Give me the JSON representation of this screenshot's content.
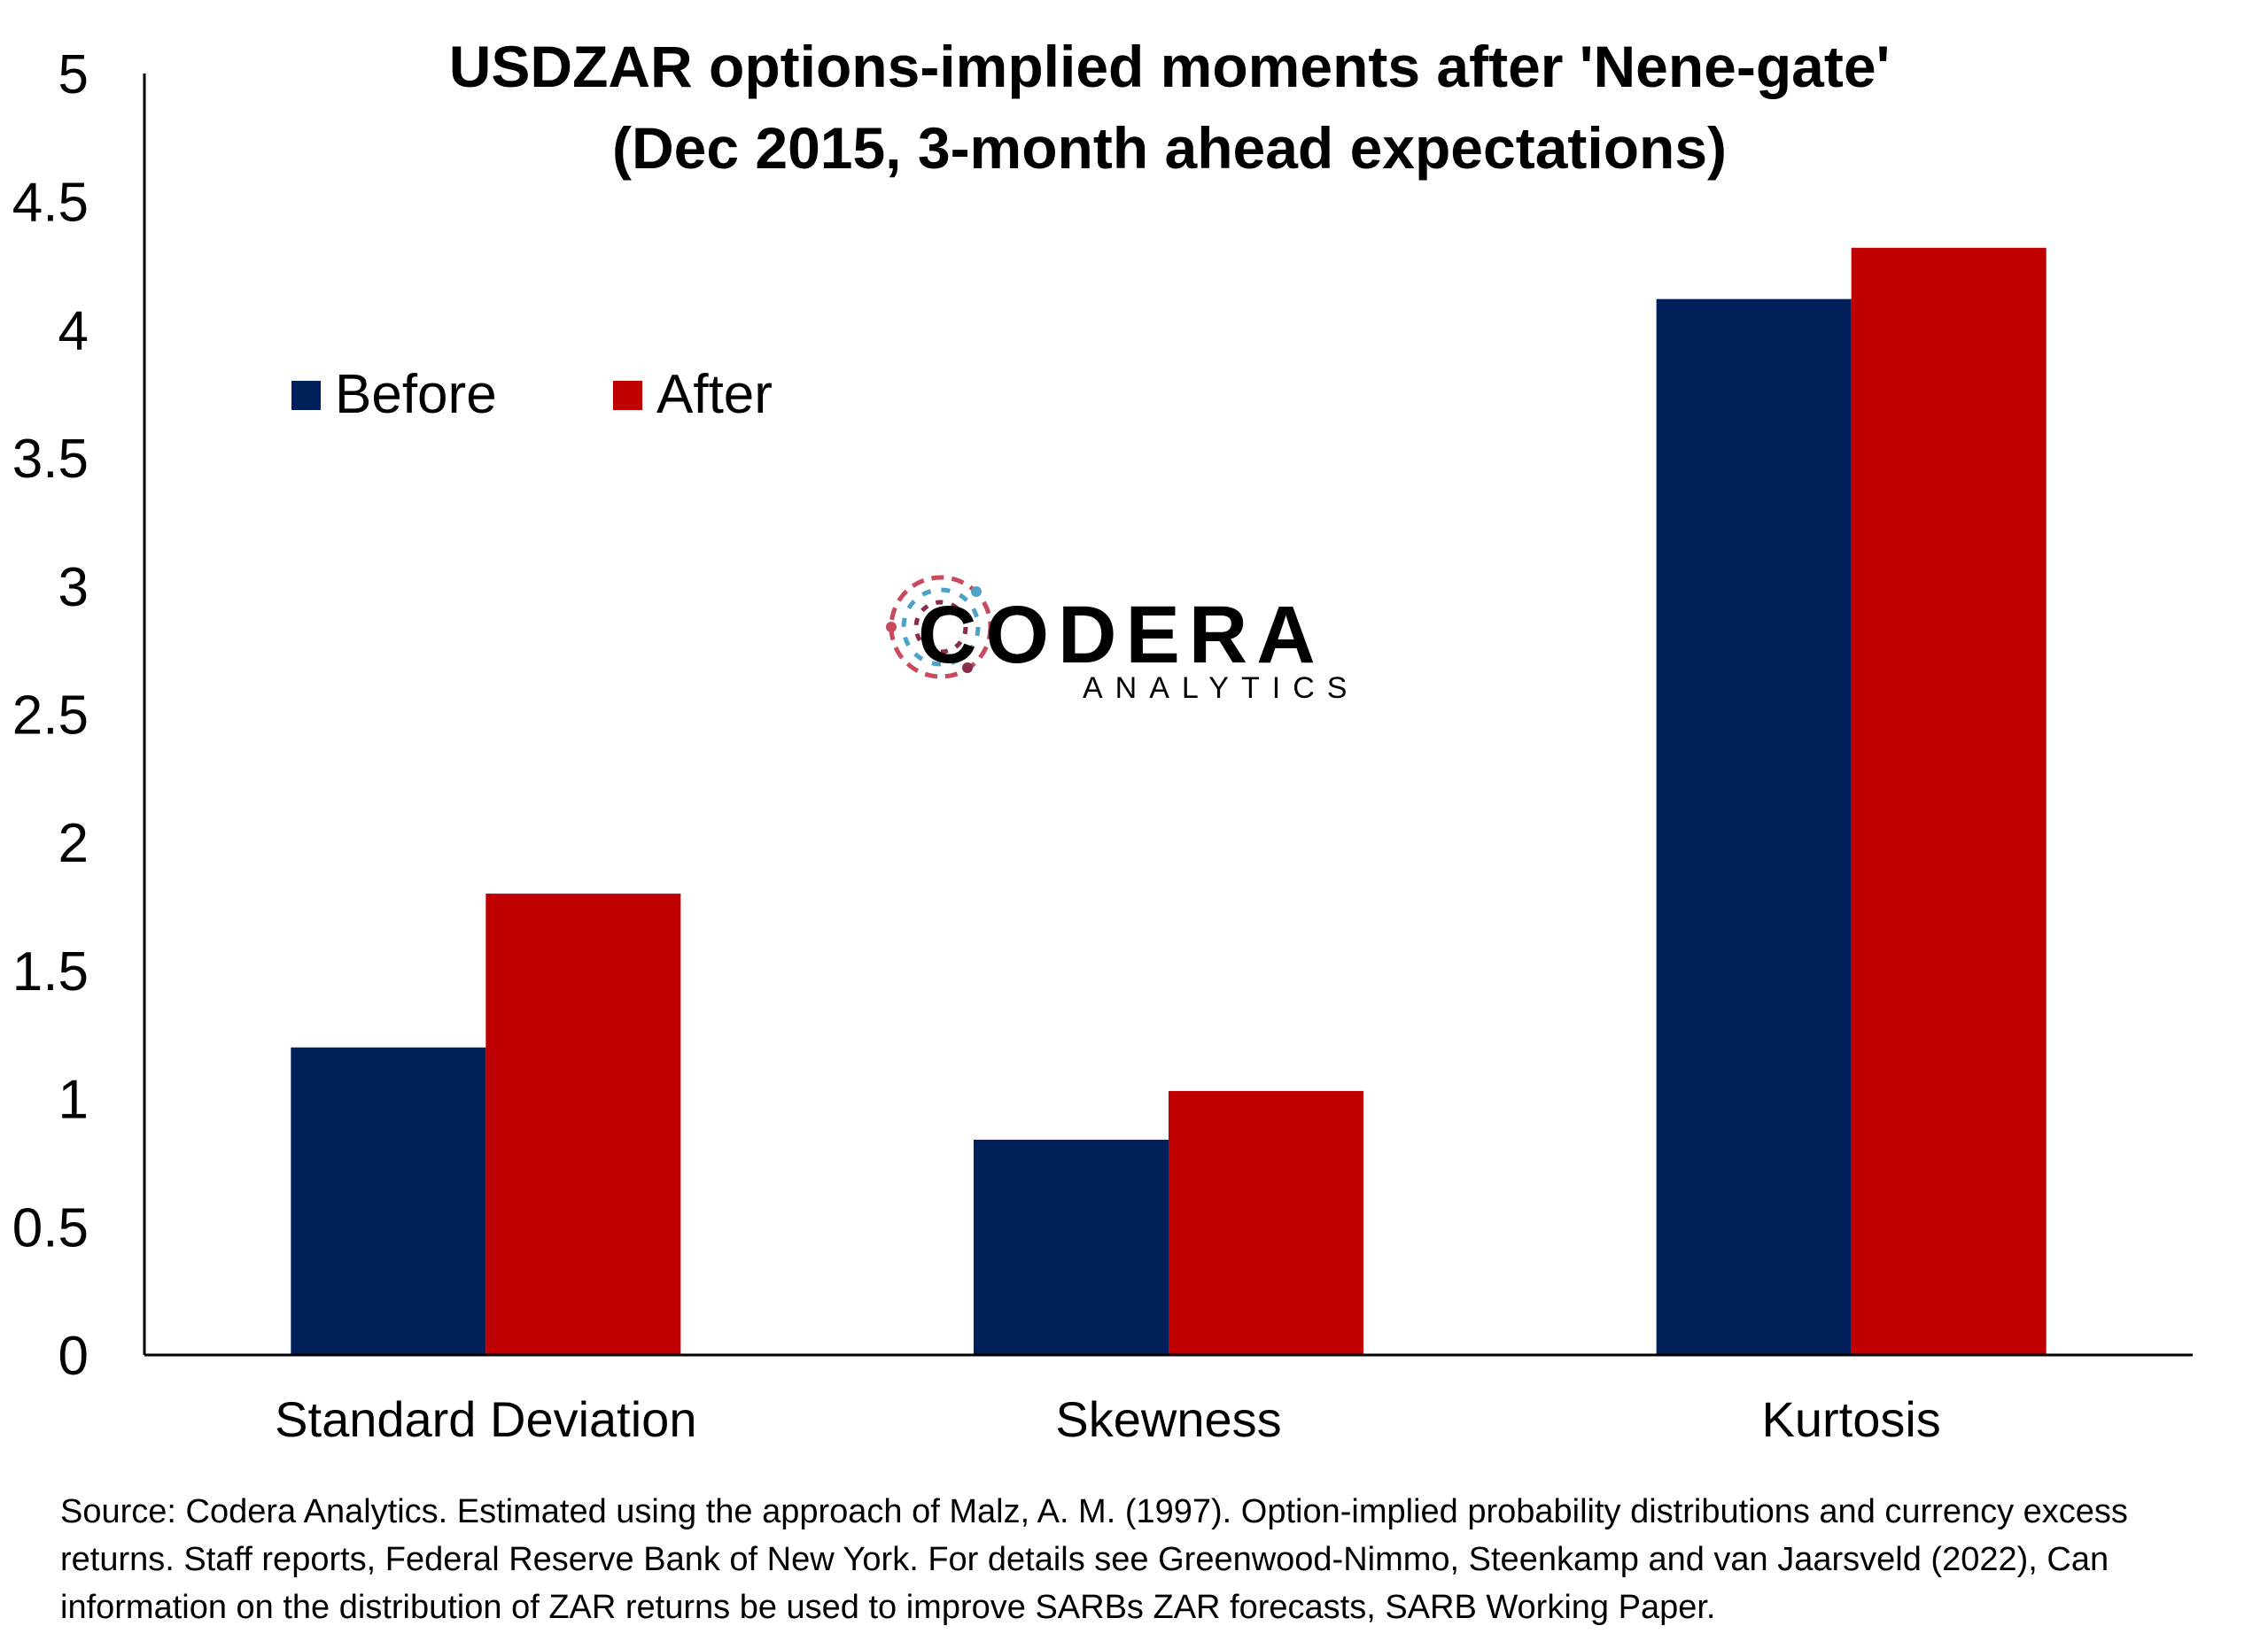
{
  "chart_data": {
    "type": "bar",
    "title": "USDZAR options-implied moments after 'Nene-gate'",
    "subtitle": "(Dec 2015, 3-month ahead expectations)",
    "categories": [
      "Standard Deviation",
      "Skewness",
      "Kurtosis"
    ],
    "series": [
      {
        "name": "Before",
        "color": "#001f5b",
        "values": [
          1.2,
          0.84,
          4.12
        ]
      },
      {
        "name": "After",
        "color": "#c00000",
        "values": [
          1.8,
          1.03,
          4.32
        ]
      }
    ],
    "ylim": [
      0,
      5
    ],
    "yticks": [
      "0",
      "0.5",
      "1",
      "1.5",
      "2",
      "2.5",
      "3",
      "3.5",
      "4",
      "4.5",
      "5"
    ],
    "ytick_values": [
      0,
      0.5,
      1,
      1.5,
      2,
      2.5,
      3,
      3.5,
      4,
      4.5,
      5
    ],
    "grid": false,
    "legend_position": "top-left"
  },
  "logo": {
    "main": "CODERA",
    "sub": "ANALYTICS",
    "sub_color": "#7a1f3d"
  },
  "source_note": "Source: Codera Analytics. Estimated using the approach of Malz, A. M. (1997). Option-implied probability distributions and currency excess returns. Staff reports, Federal Reserve Bank of New York. For details see Greenwood-Nimmo, Steenkamp and van Jaarsveld (2022), Can information on the distribution of ZAR returns be used to improve SARBs ZAR forecasts, SARB Working Paper."
}
